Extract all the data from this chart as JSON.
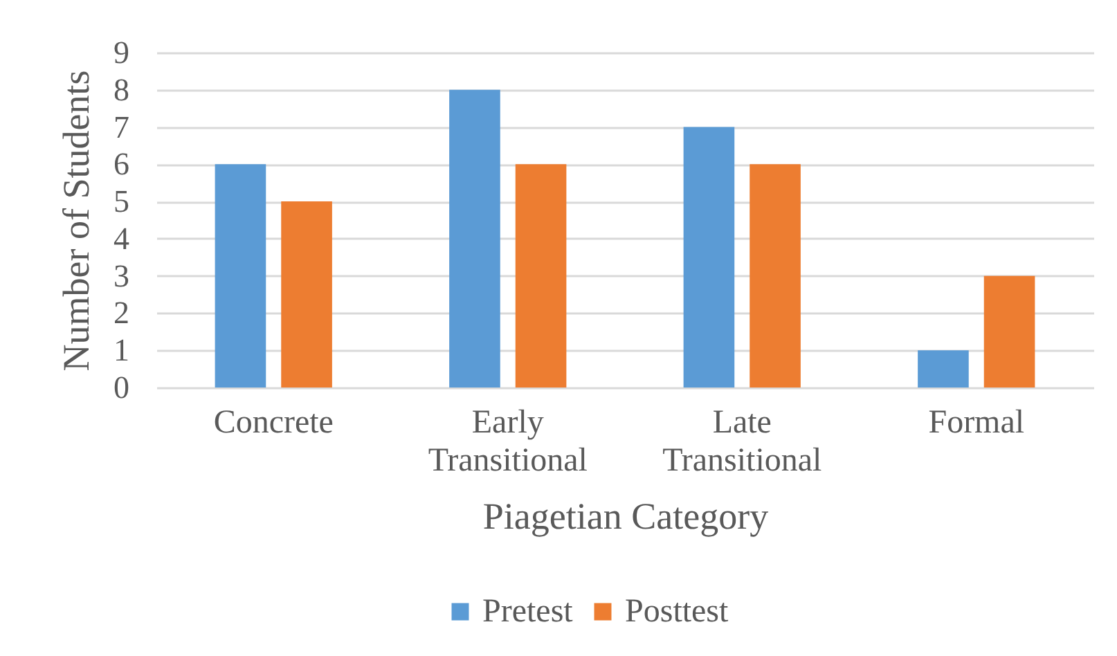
{
  "chart_data": {
    "type": "bar",
    "categories": [
      "Concrete",
      "Early Transitional",
      "Late Transitional",
      "Formal"
    ],
    "series": [
      {
        "name": "Pretest",
        "color": "#5b9bd5",
        "values": [
          6,
          8,
          7,
          1
        ]
      },
      {
        "name": "Posttest",
        "color": "#ed7d31",
        "values": [
          5,
          6,
          6,
          3
        ]
      }
    ],
    "xlabel": "Piagetian Category",
    "ylabel": "Number of Students",
    "ylim": [
      0,
      9
    ],
    "yticks": [
      0,
      1,
      2,
      3,
      4,
      5,
      6,
      7,
      8,
      9
    ],
    "grid": "y",
    "legend": "bottom"
  }
}
